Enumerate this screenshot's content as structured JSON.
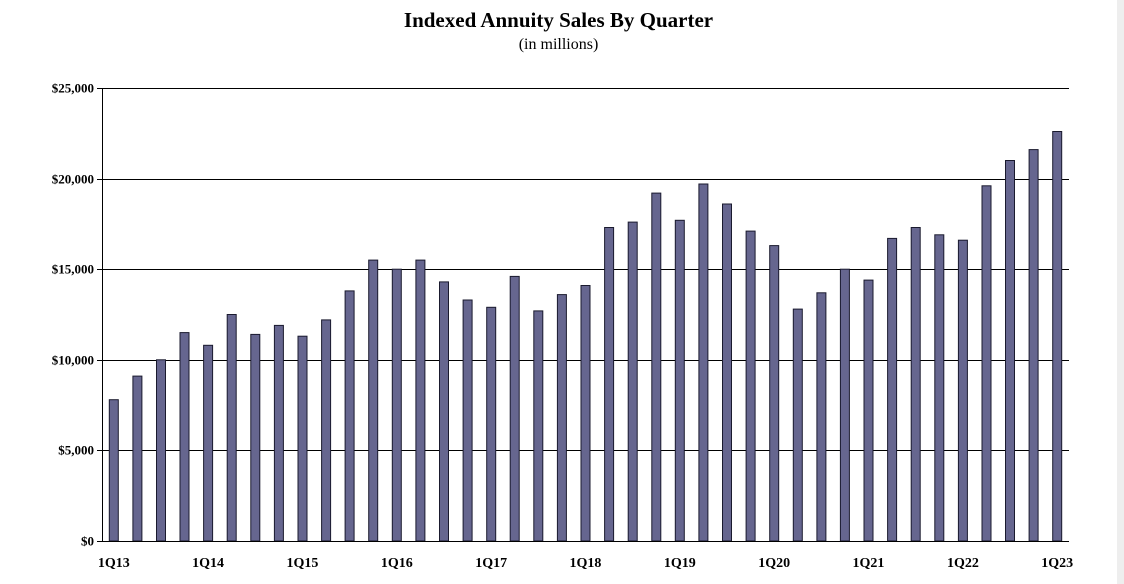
{
  "colors": {
    "bar": "#66668f",
    "bar_stroke": "#1a1a2e",
    "grid": "#000000",
    "axis": "#000000"
  },
  "chart_data": {
    "type": "bar",
    "title": "Indexed Annuity Sales By Quarter",
    "subtitle": "(in millions)",
    "ylim": [
      0,
      25000
    ],
    "yticks": [
      0,
      5000,
      10000,
      15000,
      20000,
      25000
    ],
    "ytick_labels": [
      "$0",
      "$5,000",
      "$10,000",
      "$15,000",
      "$20,000",
      "$25,000"
    ],
    "grid": true,
    "categories": [
      "1Q13",
      "2Q13",
      "3Q13",
      "4Q13",
      "1Q14",
      "2Q14",
      "3Q14",
      "4Q14",
      "1Q15",
      "2Q15",
      "3Q15",
      "4Q15",
      "1Q16",
      "2Q16",
      "3Q16",
      "4Q16",
      "1Q17",
      "2Q17",
      "3Q17",
      "4Q17",
      "1Q18",
      "2Q18",
      "3Q18",
      "4Q18",
      "1Q19",
      "2Q19",
      "3Q19",
      "4Q19",
      "1Q20",
      "2Q20",
      "3Q20",
      "4Q20",
      "1Q21",
      "2Q21",
      "3Q21",
      "4Q21",
      "1Q22",
      "2Q22",
      "3Q22",
      "4Q22",
      "1Q23"
    ],
    "xtick_labels": [
      "1Q13",
      "1Q14",
      "1Q15",
      "1Q16",
      "1Q17",
      "1Q18",
      "1Q19",
      "1Q20",
      "1Q21",
      "1Q22",
      "1Q23"
    ],
    "values": [
      7800,
      9100,
      10000,
      11500,
      10800,
      12500,
      11400,
      11900,
      11300,
      12200,
      13800,
      15500,
      15000,
      15500,
      14300,
      13300,
      12900,
      14600,
      12700,
      13600,
      14100,
      17300,
      17600,
      19200,
      17700,
      19700,
      18600,
      17100,
      16300,
      12800,
      13700,
      15000,
      14400,
      16700,
      17300,
      16900,
      16600,
      19600,
      21000,
      21600,
      22600
    ]
  }
}
